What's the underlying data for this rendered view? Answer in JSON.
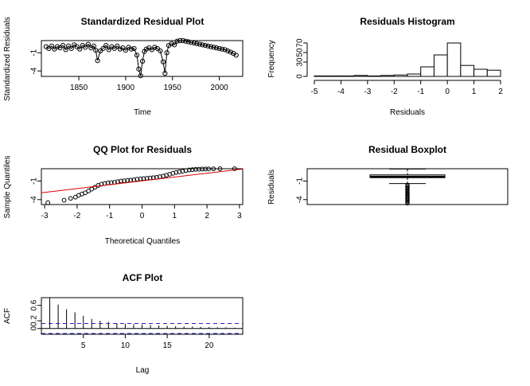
{
  "chart_data": [
    {
      "type": "scatter",
      "title": "Standardized Residual Plot",
      "xlabel": "Time",
      "ylabel": "Standardized Residuals",
      "xlim": [
        1810,
        2025
      ],
      "ylim": [
        -4.9,
        1.0
      ],
      "xticks": [
        1850,
        1900,
        1950,
        2000
      ],
      "yticks": [
        -4,
        -1
      ],
      "line": true,
      "x": [
        1815,
        1818,
        1821,
        1824,
        1827,
        1830,
        1833,
        1836,
        1839,
        1842,
        1845,
        1848,
        1851,
        1854,
        1857,
        1860,
        1863,
        1866,
        1868,
        1870,
        1873,
        1876,
        1879,
        1882,
        1885,
        1888,
        1891,
        1894,
        1897,
        1900,
        1903,
        1906,
        1909,
        1912,
        1914,
        1916,
        1918,
        1920,
        1922,
        1925,
        1928,
        1931,
        1934,
        1937,
        1940,
        1942,
        1944,
        1946,
        1949,
        1952,
        1955,
        1958,
        1961,
        1964,
        1967,
        1970,
        1973,
        1976,
        1979,
        1982,
        1985,
        1988,
        1991,
        1994,
        1997,
        2000,
        2003,
        2006,
        2009,
        2012,
        2015,
        2018
      ],
      "y": [
        0.0,
        -0.3,
        0.1,
        -0.4,
        0.0,
        -0.2,
        0.2,
        -0.5,
        0.1,
        -0.3,
        0.3,
        0.0,
        -0.4,
        0.2,
        -0.1,
        0.4,
        -0.2,
        0.1,
        -0.6,
        -2.3,
        -0.7,
        -0.3,
        0.2,
        -0.5,
        0.0,
        -0.3,
        0.1,
        -0.4,
        -0.2,
        -0.6,
        -0.1,
        -0.4,
        -0.3,
        -1.4,
        -3.7,
        -4.8,
        -2.4,
        -0.8,
        -0.4,
        -0.2,
        -0.5,
        -0.1,
        -0.3,
        -0.7,
        -2.5,
        -4.4,
        -1.0,
        0.2,
        0.5,
        0.3,
        0.9,
        1.0,
        1.0,
        0.9,
        0.8,
        0.7,
        0.6,
        0.5,
        0.4,
        0.3,
        0.2,
        0.1,
        0.0,
        -0.1,
        -0.2,
        -0.3,
        -0.4,
        -0.5,
        -0.7,
        -0.9,
        -1.1,
        -1.4
      ]
    },
    {
      "type": "bar",
      "title": "Residuals Histogram",
      "xlabel": "Residuals",
      "ylabel": "Frequency",
      "xlim": [
        -5,
        2
      ],
      "ylim": [
        0,
        75
      ],
      "xticks": [
        -5,
        -4,
        -3,
        -2,
        -1,
        0,
        1,
        2
      ],
      "yticks": [
        0,
        30,
        50,
        70
      ],
      "bins": [
        {
          "from": -5.0,
          "to": -4.5,
          "count": 1
        },
        {
          "from": -4.5,
          "to": -4.0,
          "count": 1
        },
        {
          "from": -4.0,
          "to": -3.5,
          "count": 1
        },
        {
          "from": -3.5,
          "to": -3.0,
          "count": 2
        },
        {
          "from": -3.0,
          "to": -2.5,
          "count": 1
        },
        {
          "from": -2.5,
          "to": -2.0,
          "count": 2
        },
        {
          "from": -2.0,
          "to": -1.5,
          "count": 3
        },
        {
          "from": -1.5,
          "to": -1.0,
          "count": 5
        },
        {
          "from": -1.0,
          "to": -0.5,
          "count": 20
        },
        {
          "from": -0.5,
          "to": 0.0,
          "count": 45
        },
        {
          "from": 0.0,
          "to": 0.5,
          "count": 70
        },
        {
          "from": 0.5,
          "to": 1.0,
          "count": 23
        },
        {
          "from": 1.0,
          "to": 1.5,
          "count": 15
        },
        {
          "from": 1.5,
          "to": 2.0,
          "count": 13
        }
      ]
    },
    {
      "type": "scatter",
      "title": "QQ Plot for Residuals",
      "xlabel": "Theoretical Quantiles",
      "ylabel": "Sample Quantiles",
      "xlim": [
        -3.1,
        3.1
      ],
      "ylim": [
        -4.8,
        1.0
      ],
      "xticks": [
        -3,
        -2,
        -1,
        0,
        1,
        2,
        3
      ],
      "yticks": [
        -4,
        -1
      ],
      "x": [
        -2.9,
        -2.4,
        -2.2,
        -2.05,
        -1.95,
        -1.85,
        -1.75,
        -1.65,
        -1.55,
        -1.45,
        -1.35,
        -1.25,
        -1.15,
        -1.05,
        -0.95,
        -0.85,
        -0.75,
        -0.65,
        -0.55,
        -0.45,
        -0.35,
        -0.25,
        -0.15,
        -0.05,
        0.05,
        0.15,
        0.25,
        0.35,
        0.45,
        0.55,
        0.65,
        0.75,
        0.85,
        0.95,
        1.05,
        1.15,
        1.25,
        1.35,
        1.45,
        1.55,
        1.65,
        1.75,
        1.85,
        1.95,
        2.05,
        2.2,
        2.4,
        2.85
      ],
      "y": [
        -4.5,
        -4.1,
        -3.8,
        -3.6,
        -3.3,
        -3.1,
        -2.9,
        -2.6,
        -2.3,
        -2.0,
        -1.7,
        -1.5,
        -1.4,
        -1.3,
        -1.25,
        -1.2,
        -1.1,
        -1.0,
        -0.95,
        -0.9,
        -0.85,
        -0.8,
        -0.7,
        -0.65,
        -0.6,
        -0.55,
        -0.5,
        -0.45,
        -0.4,
        -0.3,
        -0.2,
        -0.05,
        0.1,
        0.25,
        0.4,
        0.5,
        0.6,
        0.7,
        0.8,
        0.85,
        0.9,
        0.92,
        0.95,
        0.96,
        0.97,
        0.98,
        0.99,
        1.0
      ],
      "reference_line": [
        [
          -3.1,
          -2.9
        ],
        [
          3.1,
          0.95
        ]
      ]
    },
    {
      "type": "box",
      "title": "Residual Boxplot",
      "xlabel": "",
      "ylabel": "Residuals",
      "ylim": [
        -4.8,
        1.0
      ],
      "yticks": [
        -4,
        -1
      ],
      "whisker_low": -1.4,
      "q1": -0.45,
      "median": -0.3,
      "q3": 0.0,
      "whisker_high": 0.95,
      "outliers": [
        -1.6,
        -1.8,
        -2.0,
        -2.2,
        -2.4,
        -2.6,
        -2.8,
        -3.0,
        -3.2,
        -3.4,
        -3.6,
        -3.8,
        -4.0,
        -4.2,
        -4.4,
        -4.6
      ]
    },
    {
      "type": "bar",
      "title": "ACF Plot",
      "xlabel": "Lag",
      "ylabel": "ACF",
      "xlim": [
        0,
        24
      ],
      "ylim": [
        -0.15,
        0.8
      ],
      "xticks": [
        5,
        10,
        15,
        20
      ],
      "yticks": [
        0.0,
        0.2,
        0.6
      ],
      "lags": [
        1,
        2,
        3,
        4,
        5,
        6,
        7,
        8,
        9,
        10,
        11,
        12,
        13,
        14,
        15,
        16,
        17,
        18,
        19,
        20,
        21,
        22,
        23
      ],
      "values": [
        0.8,
        0.62,
        0.5,
        0.42,
        0.33,
        0.25,
        0.2,
        0.17,
        0.14,
        0.12,
        0.11,
        0.1,
        0.09,
        0.08,
        0.07,
        0.06,
        0.05,
        0.05,
        0.04,
        0.04,
        0.03,
        0.03,
        0.02
      ],
      "confidence_bound": 0.13,
      "colors": {
        "bound": "#2222cc"
      }
    }
  ],
  "colors": {
    "reference_line": "#dd0000",
    "acf_bound": "#2222cc"
  }
}
